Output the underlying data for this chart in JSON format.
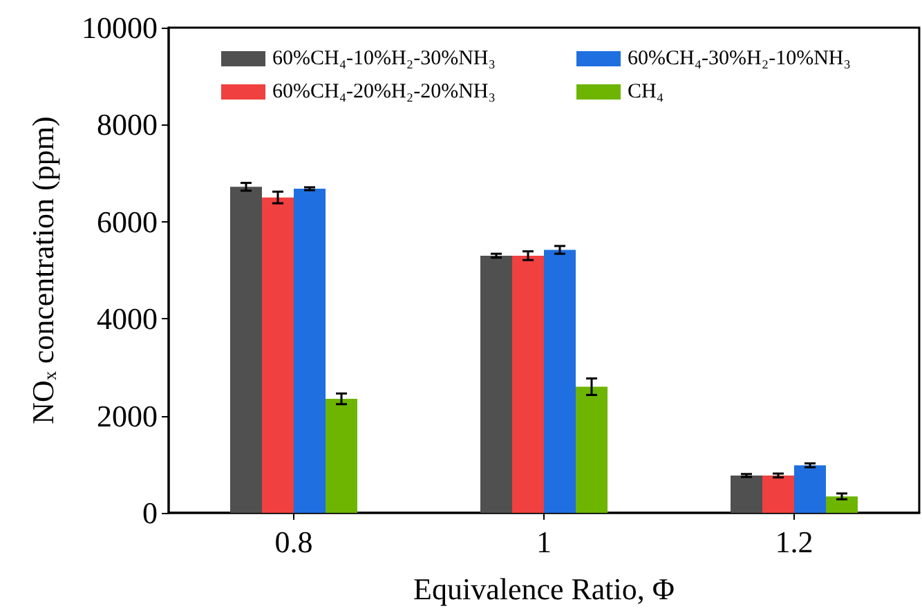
{
  "chart_data": {
    "type": "bar",
    "xlabel": "Equivalence Ratio, Φ",
    "ylabel": "NOₓ concentration (ppm)",
    "categories": [
      "0.8",
      "1",
      "1.2"
    ],
    "series": [
      {
        "name": "60%CH₄-10%H₂-30%NH₃",
        "color": "#505050",
        "values": [
          6720,
          5300,
          770
        ],
        "errors": [
          80,
          40,
          30
        ]
      },
      {
        "name": "60%CH₄-20%H₂-20%NH₃",
        "color": "#f04040",
        "values": [
          6500,
          5300,
          770
        ],
        "errors": [
          120,
          90,
          40
        ]
      },
      {
        "name": "60%CH₄-30%H₂-10%NH₃",
        "color": "#1f6fe0",
        "values": [
          6680,
          5420,
          980
        ],
        "errors": [
          30,
          80,
          40
        ]
      },
      {
        "name": "CH₄",
        "color": "#6db500",
        "values": [
          2350,
          2600,
          340
        ],
        "errors": [
          110,
          170,
          60
        ]
      }
    ],
    "ylim": [
      0,
      10000
    ],
    "yticks": [
      0,
      2000,
      4000,
      6000,
      8000,
      10000
    ],
    "grid": false,
    "legend": "top"
  }
}
